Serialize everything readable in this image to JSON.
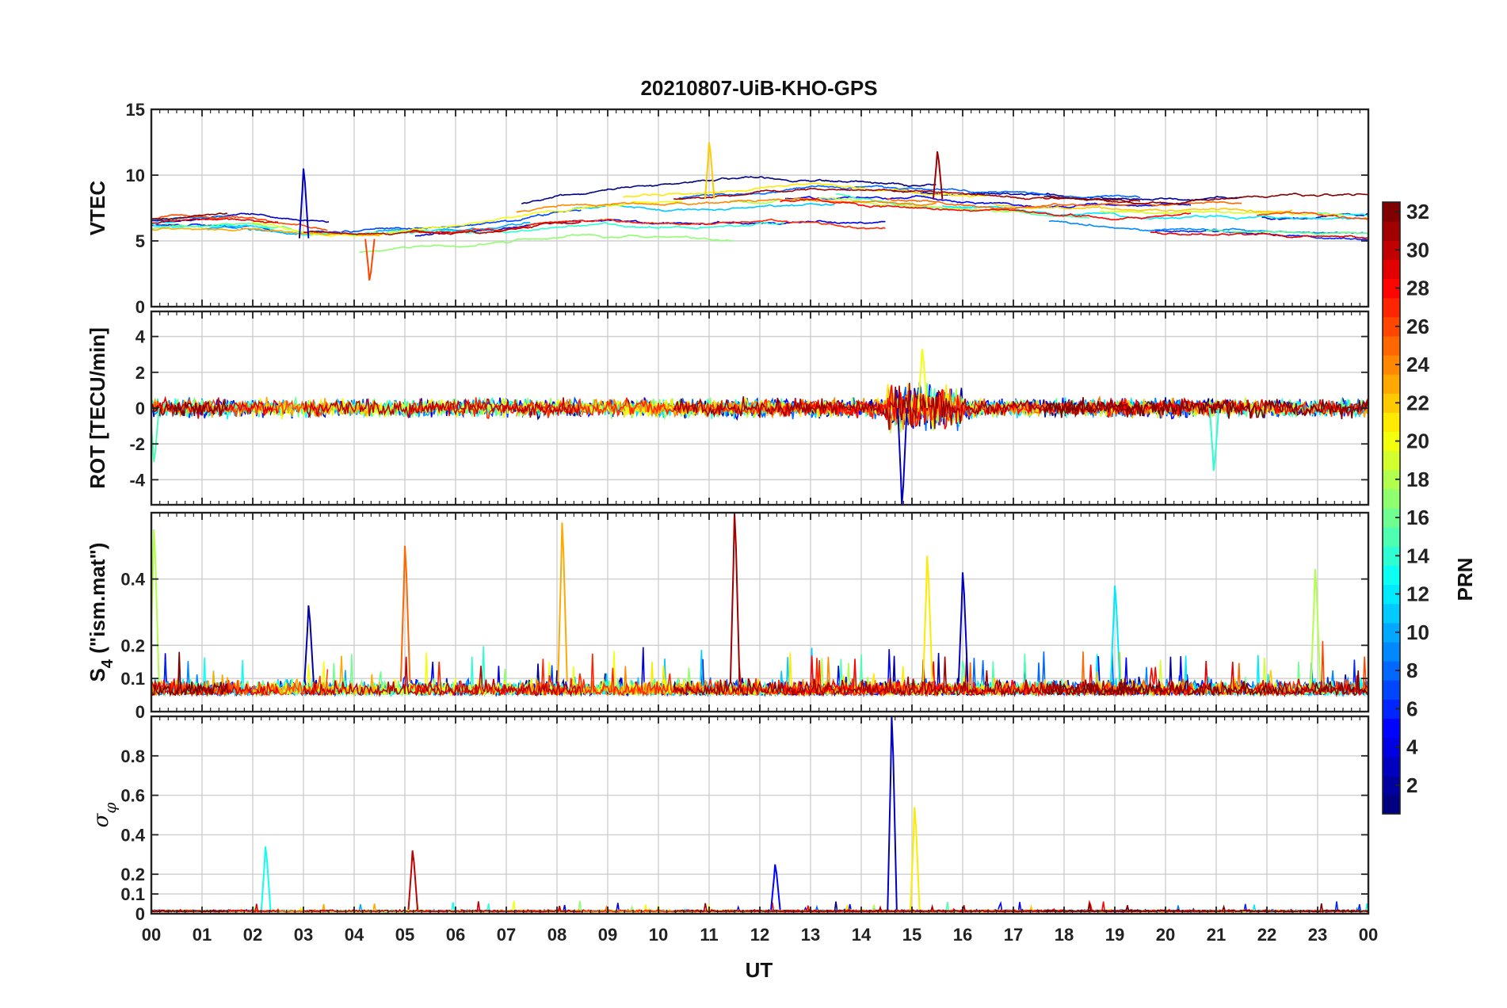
{
  "chart_data": {
    "type": "line",
    "title": "20210807-UiB-KHO-GPS",
    "xlabel": "UT",
    "x_tick_labels": [
      "00",
      "01",
      "02",
      "03",
      "04",
      "05",
      "06",
      "07",
      "08",
      "09",
      "10",
      "11",
      "12",
      "13",
      "14",
      "15",
      "16",
      "17",
      "18",
      "19",
      "20",
      "21",
      "22",
      "23",
      "00"
    ],
    "xlim": [
      0,
      24
    ],
    "panels": [
      {
        "ylabel": "VTEC",
        "ylim": [
          0,
          15
        ],
        "y_ticks": [
          0,
          5,
          10,
          15
        ],
        "y_tick_labels": [
          "0",
          "5",
          "10",
          "15"
        ],
        "trend": [
          [
            0,
            6.0
          ],
          [
            2,
            6.2
          ],
          [
            3,
            5.2
          ],
          [
            4,
            5.0
          ],
          [
            5,
            5.5
          ],
          [
            6,
            6.0
          ],
          [
            7,
            6.6
          ],
          [
            8,
            7.5
          ],
          [
            9,
            7.8
          ],
          [
            10,
            7.8
          ],
          [
            11,
            8.2
          ],
          [
            12,
            8.6
          ],
          [
            13,
            9.0
          ],
          [
            14,
            8.5
          ],
          [
            15,
            8.3
          ],
          [
            16,
            8.0
          ],
          [
            17,
            7.8
          ],
          [
            18,
            7.2
          ],
          [
            19,
            6.8
          ],
          [
            20,
            6.6
          ],
          [
            21,
            6.8
          ],
          [
            22,
            6.6
          ],
          [
            23,
            6.4
          ],
          [
            24,
            6.2
          ]
        ]
      },
      {
        "ylabel": "ROT [TECU/min]",
        "ylim": [
          -5.4,
          5.4
        ],
        "y_ticks": [
          -4,
          -2,
          0,
          2,
          4
        ],
        "y_tick_labels": [
          "-4",
          "-2",
          "0",
          "2",
          "4"
        ],
        "trend": [
          [
            0,
            0
          ],
          [
            24,
            0
          ]
        ]
      },
      {
        "ylabel_main": "S",
        "ylabel_sub": "4",
        "ylabel_rest": " (\"ism.mat\")",
        "ylim": [
          0,
          0.6
        ],
        "y_ticks": [
          0,
          0.1,
          0.2,
          0.4
        ],
        "y_tick_labels": [
          "0",
          "0.1",
          "0.2",
          "0.4"
        ],
        "trend": [
          [
            0,
            0.09
          ],
          [
            24,
            0.09
          ]
        ]
      },
      {
        "ylabel_main": "σ",
        "ylabel_sub": "φ",
        "ylim": [
          0,
          1.0
        ],
        "y_ticks": [
          0,
          0.1,
          0.2,
          0.4,
          0.6,
          0.8
        ],
        "y_tick_labels": [
          "0",
          "0.1",
          "0.2",
          "0.4",
          "0.6",
          "0.8"
        ],
        "trend": [
          [
            0,
            0.02
          ],
          [
            24,
            0.02
          ]
        ]
      }
    ],
    "colorbar": {
      "label": "PRN",
      "min": 1,
      "max": 32,
      "tick_values": [
        2,
        4,
        6,
        8,
        10,
        12,
        14,
        16,
        18,
        20,
        22,
        24,
        26,
        28,
        30,
        32
      ],
      "tick_labels": [
        "2",
        "4",
        "6",
        "8",
        "10",
        "12",
        "14",
        "16",
        "18",
        "20",
        "22",
        "24",
        "26",
        "28",
        "30",
        "32"
      ],
      "colormap": "jet"
    },
    "series": [
      {
        "prn": 1,
        "panels": [
          "VTEC",
          "ROT",
          "S4",
          "sigma_phi"
        ]
      },
      {
        "prn": 2,
        "panels": [
          "VTEC",
          "ROT",
          "S4",
          "sigma_phi"
        ]
      },
      {
        "prn": 3,
        "panels": [
          "VTEC",
          "ROT",
          "S4",
          "sigma_phi"
        ]
      },
      {
        "prn": 4,
        "panels": [
          "VTEC",
          "ROT",
          "S4",
          "sigma_phi"
        ]
      },
      {
        "prn": 5,
        "panels": [
          "VTEC",
          "ROT",
          "S4",
          "sigma_phi"
        ]
      },
      {
        "prn": 6,
        "panels": [
          "VTEC",
          "ROT",
          "S4",
          "sigma_phi"
        ]
      },
      {
        "prn": 7,
        "panels": [
          "VTEC",
          "ROT",
          "S4",
          "sigma_phi"
        ]
      },
      {
        "prn": 8,
        "panels": [
          "VTEC",
          "ROT",
          "S4",
          "sigma_phi"
        ]
      },
      {
        "prn": 9,
        "panels": [
          "VTEC",
          "ROT",
          "S4",
          "sigma_phi"
        ]
      },
      {
        "prn": 10,
        "panels": [
          "VTEC",
          "ROT",
          "S4",
          "sigma_phi"
        ]
      },
      {
        "prn": 11,
        "panels": [
          "VTEC",
          "ROT",
          "S4",
          "sigma_phi"
        ]
      },
      {
        "prn": 12,
        "panels": [
          "VTEC",
          "ROT",
          "S4",
          "sigma_phi"
        ]
      },
      {
        "prn": 13,
        "panels": [
          "VTEC",
          "ROT",
          "S4",
          "sigma_phi"
        ]
      },
      {
        "prn": 14,
        "panels": [
          "VTEC",
          "ROT",
          "S4",
          "sigma_phi"
        ]
      },
      {
        "prn": 15,
        "panels": [
          "VTEC",
          "ROT",
          "S4",
          "sigma_phi"
        ]
      },
      {
        "prn": 16,
        "panels": [
          "VTEC",
          "ROT",
          "S4",
          "sigma_phi"
        ]
      },
      {
        "prn": 17,
        "panels": [
          "VTEC",
          "ROT",
          "S4",
          "sigma_phi"
        ]
      },
      {
        "prn": 18,
        "panels": [
          "VTEC",
          "ROT",
          "S4",
          "sigma_phi"
        ]
      },
      {
        "prn": 19,
        "panels": [
          "VTEC",
          "ROT",
          "S4",
          "sigma_phi"
        ]
      },
      {
        "prn": 20,
        "panels": [
          "VTEC",
          "ROT",
          "S4",
          "sigma_phi"
        ]
      },
      {
        "prn": 21,
        "panels": [
          "VTEC",
          "ROT",
          "S4",
          "sigma_phi"
        ]
      },
      {
        "prn": 22,
        "panels": [
          "VTEC",
          "ROT",
          "S4",
          "sigma_phi"
        ]
      },
      {
        "prn": 23,
        "panels": [
          "VTEC",
          "ROT",
          "S4",
          "sigma_phi"
        ]
      },
      {
        "prn": 24,
        "panels": [
          "VTEC",
          "ROT",
          "S4",
          "sigma_phi"
        ]
      },
      {
        "prn": 25,
        "panels": [
          "VTEC",
          "ROT",
          "S4",
          "sigma_phi"
        ]
      },
      {
        "prn": 26,
        "panels": [
          "VTEC",
          "ROT",
          "S4",
          "sigma_phi"
        ]
      },
      {
        "prn": 27,
        "panels": [
          "VTEC",
          "ROT",
          "S4",
          "sigma_phi"
        ]
      },
      {
        "prn": 28,
        "panels": [
          "VTEC",
          "ROT",
          "S4",
          "sigma_phi"
        ]
      },
      {
        "prn": 29,
        "panels": [
          "VTEC",
          "ROT",
          "S4",
          "sigma_phi"
        ]
      },
      {
        "prn": 30,
        "panels": [
          "VTEC",
          "ROT",
          "S4",
          "sigma_phi"
        ]
      },
      {
        "prn": 31,
        "panels": [
          "VTEC",
          "ROT",
          "S4",
          "sigma_phi"
        ]
      },
      {
        "prn": 32,
        "panels": [
          "VTEC",
          "ROT",
          "S4",
          "sigma_phi"
        ]
      }
    ],
    "notable_features": [
      {
        "panel": "VTEC",
        "x": 3.0,
        "y": 10.5,
        "prn": 3
      },
      {
        "panel": "VTEC",
        "x": 11.0,
        "y": 12.5,
        "prn": 22
      },
      {
        "panel": "VTEC",
        "x": 15.5,
        "y": 11.8,
        "prn": 31
      },
      {
        "panel": "VTEC",
        "x": 4.3,
        "y": 2.0,
        "prn": 26
      },
      {
        "panel": "ROT",
        "x": 14.8,
        "y": -5.4,
        "prn": 3
      },
      {
        "panel": "ROT",
        "x": 15.2,
        "y": 3.3,
        "prn": 20
      },
      {
        "panel": "ROT",
        "x": 20.95,
        "y": -3.5,
        "prn": 14
      },
      {
        "panel": "ROT",
        "x": 0.05,
        "y": -3.0,
        "prn": 15
      },
      {
        "panel": "S4",
        "x": 11.5,
        "y": 0.6,
        "prn": 31
      },
      {
        "panel": "S4",
        "x": 8.1,
        "y": 0.57,
        "prn": 23
      },
      {
        "panel": "S4",
        "x": 5.0,
        "y": 0.5,
        "prn": 25
      },
      {
        "panel": "S4",
        "x": 0.05,
        "y": 0.55,
        "prn": 18
      },
      {
        "panel": "S4",
        "x": 15.3,
        "y": 0.47,
        "prn": 21
      },
      {
        "panel": "S4",
        "x": 16.0,
        "y": 0.42,
        "prn": 3
      },
      {
        "panel": "S4",
        "x": 19.0,
        "y": 0.38,
        "prn": 12
      },
      {
        "panel": "S4",
        "x": 22.95,
        "y": 0.43,
        "prn": 18
      },
      {
        "panel": "S4",
        "x": 3.1,
        "y": 0.32,
        "prn": 2
      },
      {
        "panel": "sigma_phi",
        "x": 14.6,
        "y": 1.0,
        "prn": 3
      },
      {
        "panel": "sigma_phi",
        "x": 15.05,
        "y": 0.54,
        "prn": 21
      },
      {
        "panel": "sigma_phi",
        "x": 2.25,
        "y": 0.34,
        "prn": 13
      },
      {
        "panel": "sigma_phi",
        "x": 5.15,
        "y": 0.32,
        "prn": 30
      },
      {
        "panel": "sigma_phi",
        "x": 12.3,
        "y": 0.25,
        "prn": 5
      }
    ]
  }
}
